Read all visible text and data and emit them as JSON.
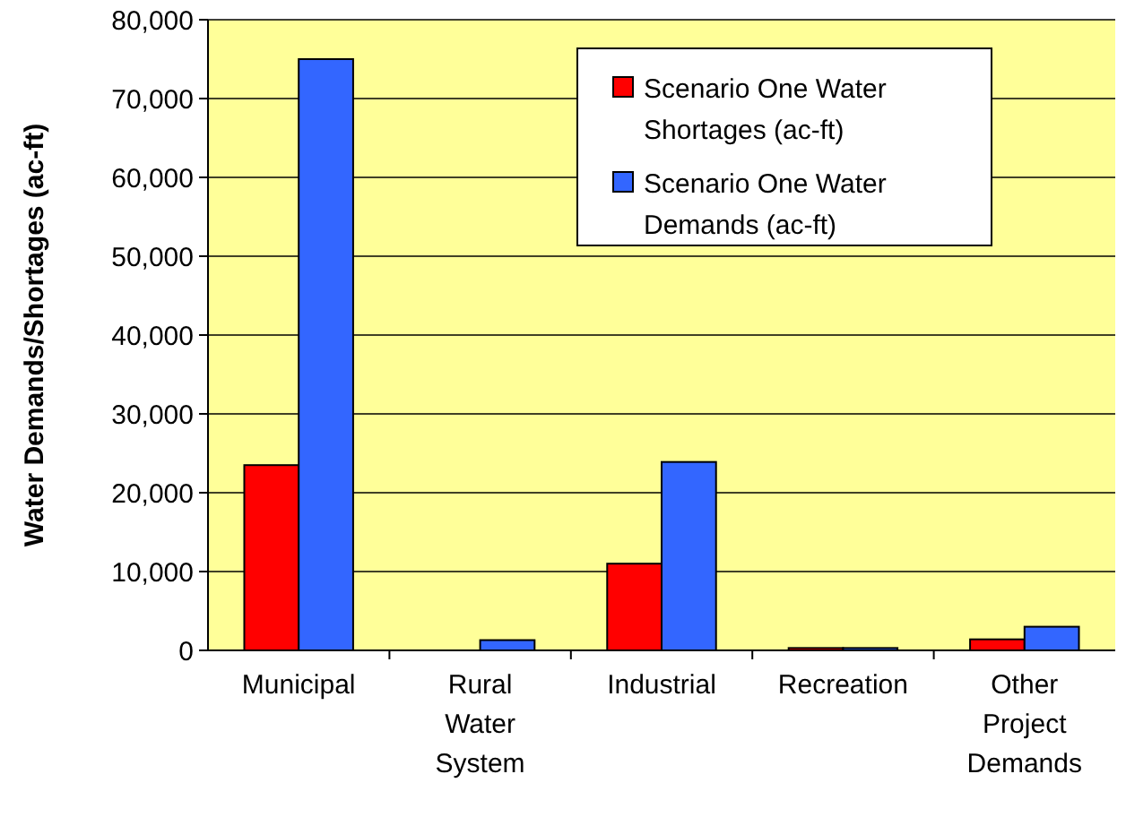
{
  "chart_data": {
    "type": "bar",
    "ylabel": "Water Demands/Shortages (ac-ft)",
    "categories": [
      "Municipal",
      "Rural Water System",
      "Industrial",
      "Recreation",
      "Other Project Demands"
    ],
    "series": [
      {
        "name": "Scenario One Water Shortages (ac-ft)",
        "color": "#ff0000",
        "values": [
          23500,
          0,
          11000,
          300,
          1400
        ]
      },
      {
        "name": "Scenario One Water Demands (ac-ft)",
        "color": "#3366ff",
        "values": [
          75000,
          1300,
          23900,
          300,
          3000
        ]
      }
    ],
    "ylim": [
      0,
      80000
    ],
    "yticks": [
      {
        "value": 0,
        "label": "0"
      },
      {
        "value": 10000,
        "label": "10,000"
      },
      {
        "value": 20000,
        "label": "20,000"
      },
      {
        "value": 30000,
        "label": "30,000"
      },
      {
        "value": 40000,
        "label": "40,000"
      },
      {
        "value": 50000,
        "label": "50,000"
      },
      {
        "value": 60000,
        "label": "60,000"
      },
      {
        "value": 70000,
        "label": "70,000"
      },
      {
        "value": 80000,
        "label": "80,000"
      }
    ],
    "grid": "y",
    "legend": "top right"
  }
}
